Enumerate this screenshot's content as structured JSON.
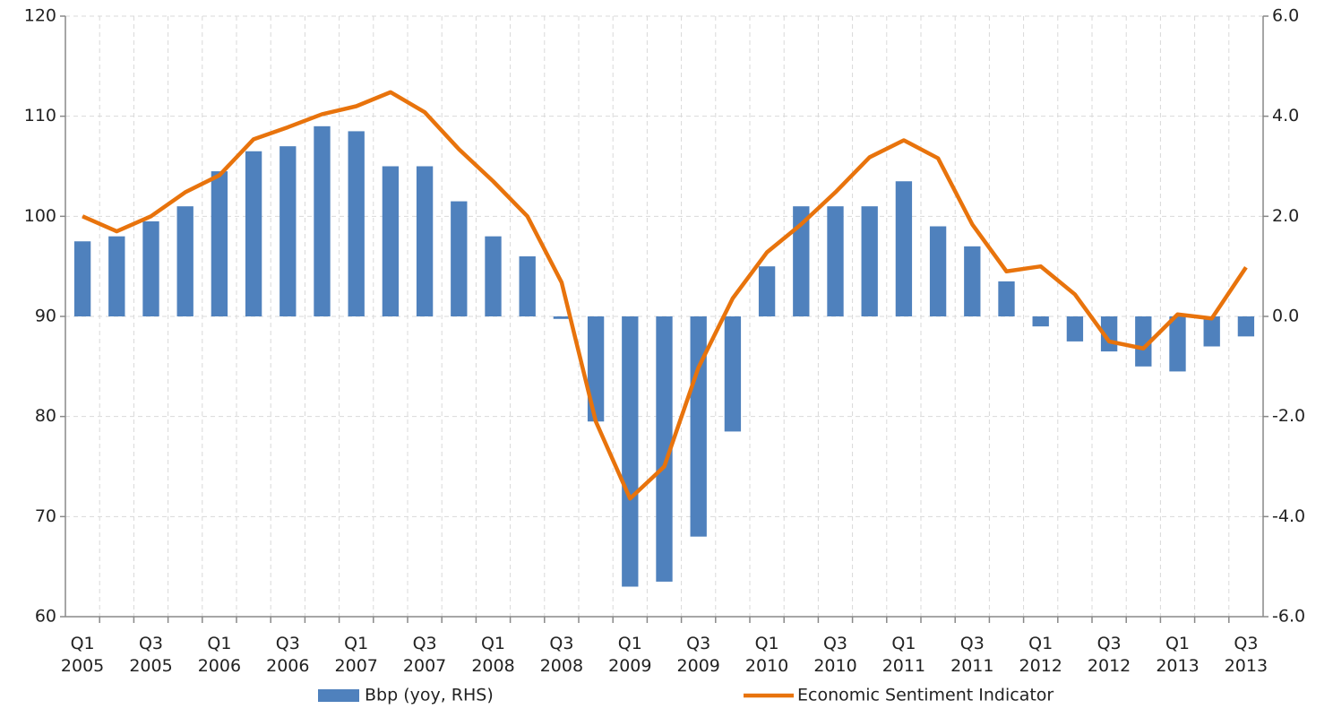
{
  "chart_data": {
    "type": "combo",
    "categories": [
      [
        "Q1",
        "2005"
      ],
      null,
      [
        "Q3",
        "2005"
      ],
      null,
      [
        "Q1",
        "2006"
      ],
      null,
      [
        "Q3",
        "2006"
      ],
      null,
      [
        "Q1",
        "2007"
      ],
      null,
      [
        "Q3",
        "2007"
      ],
      null,
      [
        "Q1",
        "2008"
      ],
      null,
      [
        "Q3",
        "2008"
      ],
      null,
      [
        "Q1",
        "2009"
      ],
      null,
      [
        "Q3",
        "2009"
      ],
      null,
      [
        "Q1",
        "2010"
      ],
      null,
      [
        "Q3",
        "2010"
      ],
      null,
      [
        "Q1",
        "2011"
      ],
      null,
      [
        "Q3",
        "2011"
      ],
      null,
      [
        "Q1",
        "2012"
      ],
      null,
      [
        "Q3",
        "2012"
      ],
      null,
      [
        "Q1",
        "2013"
      ],
      null,
      [
        "Q3",
        "2013"
      ]
    ],
    "series": [
      {
        "name": "Bbp (yoy, RHS)",
        "type": "bar",
        "axis": "y2",
        "color": "#4f81bd",
        "values": [
          1.5,
          1.6,
          1.9,
          2.2,
          2.9,
          3.3,
          3.4,
          3.8,
          3.7,
          3.0,
          3.0,
          2.3,
          1.6,
          1.2,
          -0.05,
          -2.1,
          -5.4,
          -5.3,
          -4.4,
          -2.3,
          1.0,
          2.2,
          2.2,
          2.2,
          2.7,
          1.8,
          1.4,
          0.7,
          -0.2,
          -0.5,
          -0.7,
          -1.0,
          -1.1,
          -0.6,
          -0.4
        ]
      },
      {
        "name": "Economic Sentiment Indicator",
        "type": "line",
        "color": "#e8730c",
        "values": [
          100.0,
          98.5,
          100.0,
          102.4,
          104.1,
          107.7,
          108.9,
          110.2,
          111.0,
          112.4,
          110.4,
          106.7,
          103.5,
          100.0,
          93.4,
          79.5,
          71.8,
          75.0,
          84.9,
          91.8,
          96.4,
          99.2,
          102.4,
          105.9,
          107.6,
          105.8,
          99.2,
          94.5,
          95.0,
          92.2,
          87.5,
          86.8,
          90.2,
          89.8,
          94.9
        ]
      }
    ],
    "ylim": [
      60,
      120
    ],
    "yticks": [
      60,
      70,
      80,
      90,
      100,
      110,
      120
    ],
    "y2lim": [
      -6,
      6
    ],
    "y2ticks": [
      {
        "value": -6,
        "label": "-6.0"
      },
      {
        "value": -4,
        "label": "-4.0"
      },
      {
        "value": -2,
        "label": "-2.0"
      },
      {
        "value": 0,
        "label": "0.0"
      },
      {
        "value": 2,
        "label": "2.0"
      },
      {
        "value": 4,
        "label": "4.0"
      },
      {
        "value": 6,
        "label": "6.0"
      }
    ],
    "grid": true,
    "legend": "bottom"
  }
}
